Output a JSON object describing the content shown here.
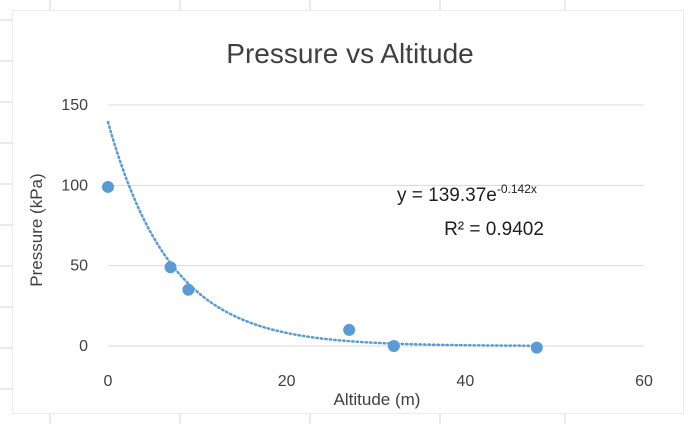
{
  "chart_data": {
    "type": "scatter",
    "title": "Pressure vs Altitude",
    "xlabel": "Altitude (m)",
    "ylabel": "Pressure (kPa)",
    "xlim": [
      0,
      60
    ],
    "ylim": [
      0,
      150
    ],
    "x_ticks": [
      "0",
      "20",
      "40",
      "60"
    ],
    "y_ticks": [
      "0",
      "50",
      "100",
      "150"
    ],
    "grid": "horizontal",
    "legend": "none",
    "series": [
      {
        "x": [
          0,
          7,
          9,
          27,
          32,
          48
        ],
        "y": [
          99,
          49,
          35,
          10,
          0,
          -1
        ],
        "color": "#5b9bd5"
      }
    ],
    "trendline": {
      "type": "exponential",
      "a": 139.37,
      "b": -0.142,
      "style": "dotted",
      "color": "#5b9bd5",
      "equation_base": "y = 139.37e",
      "equation_exponent": "-0.142x",
      "r_squared_label": "R² = 0.9402"
    }
  }
}
